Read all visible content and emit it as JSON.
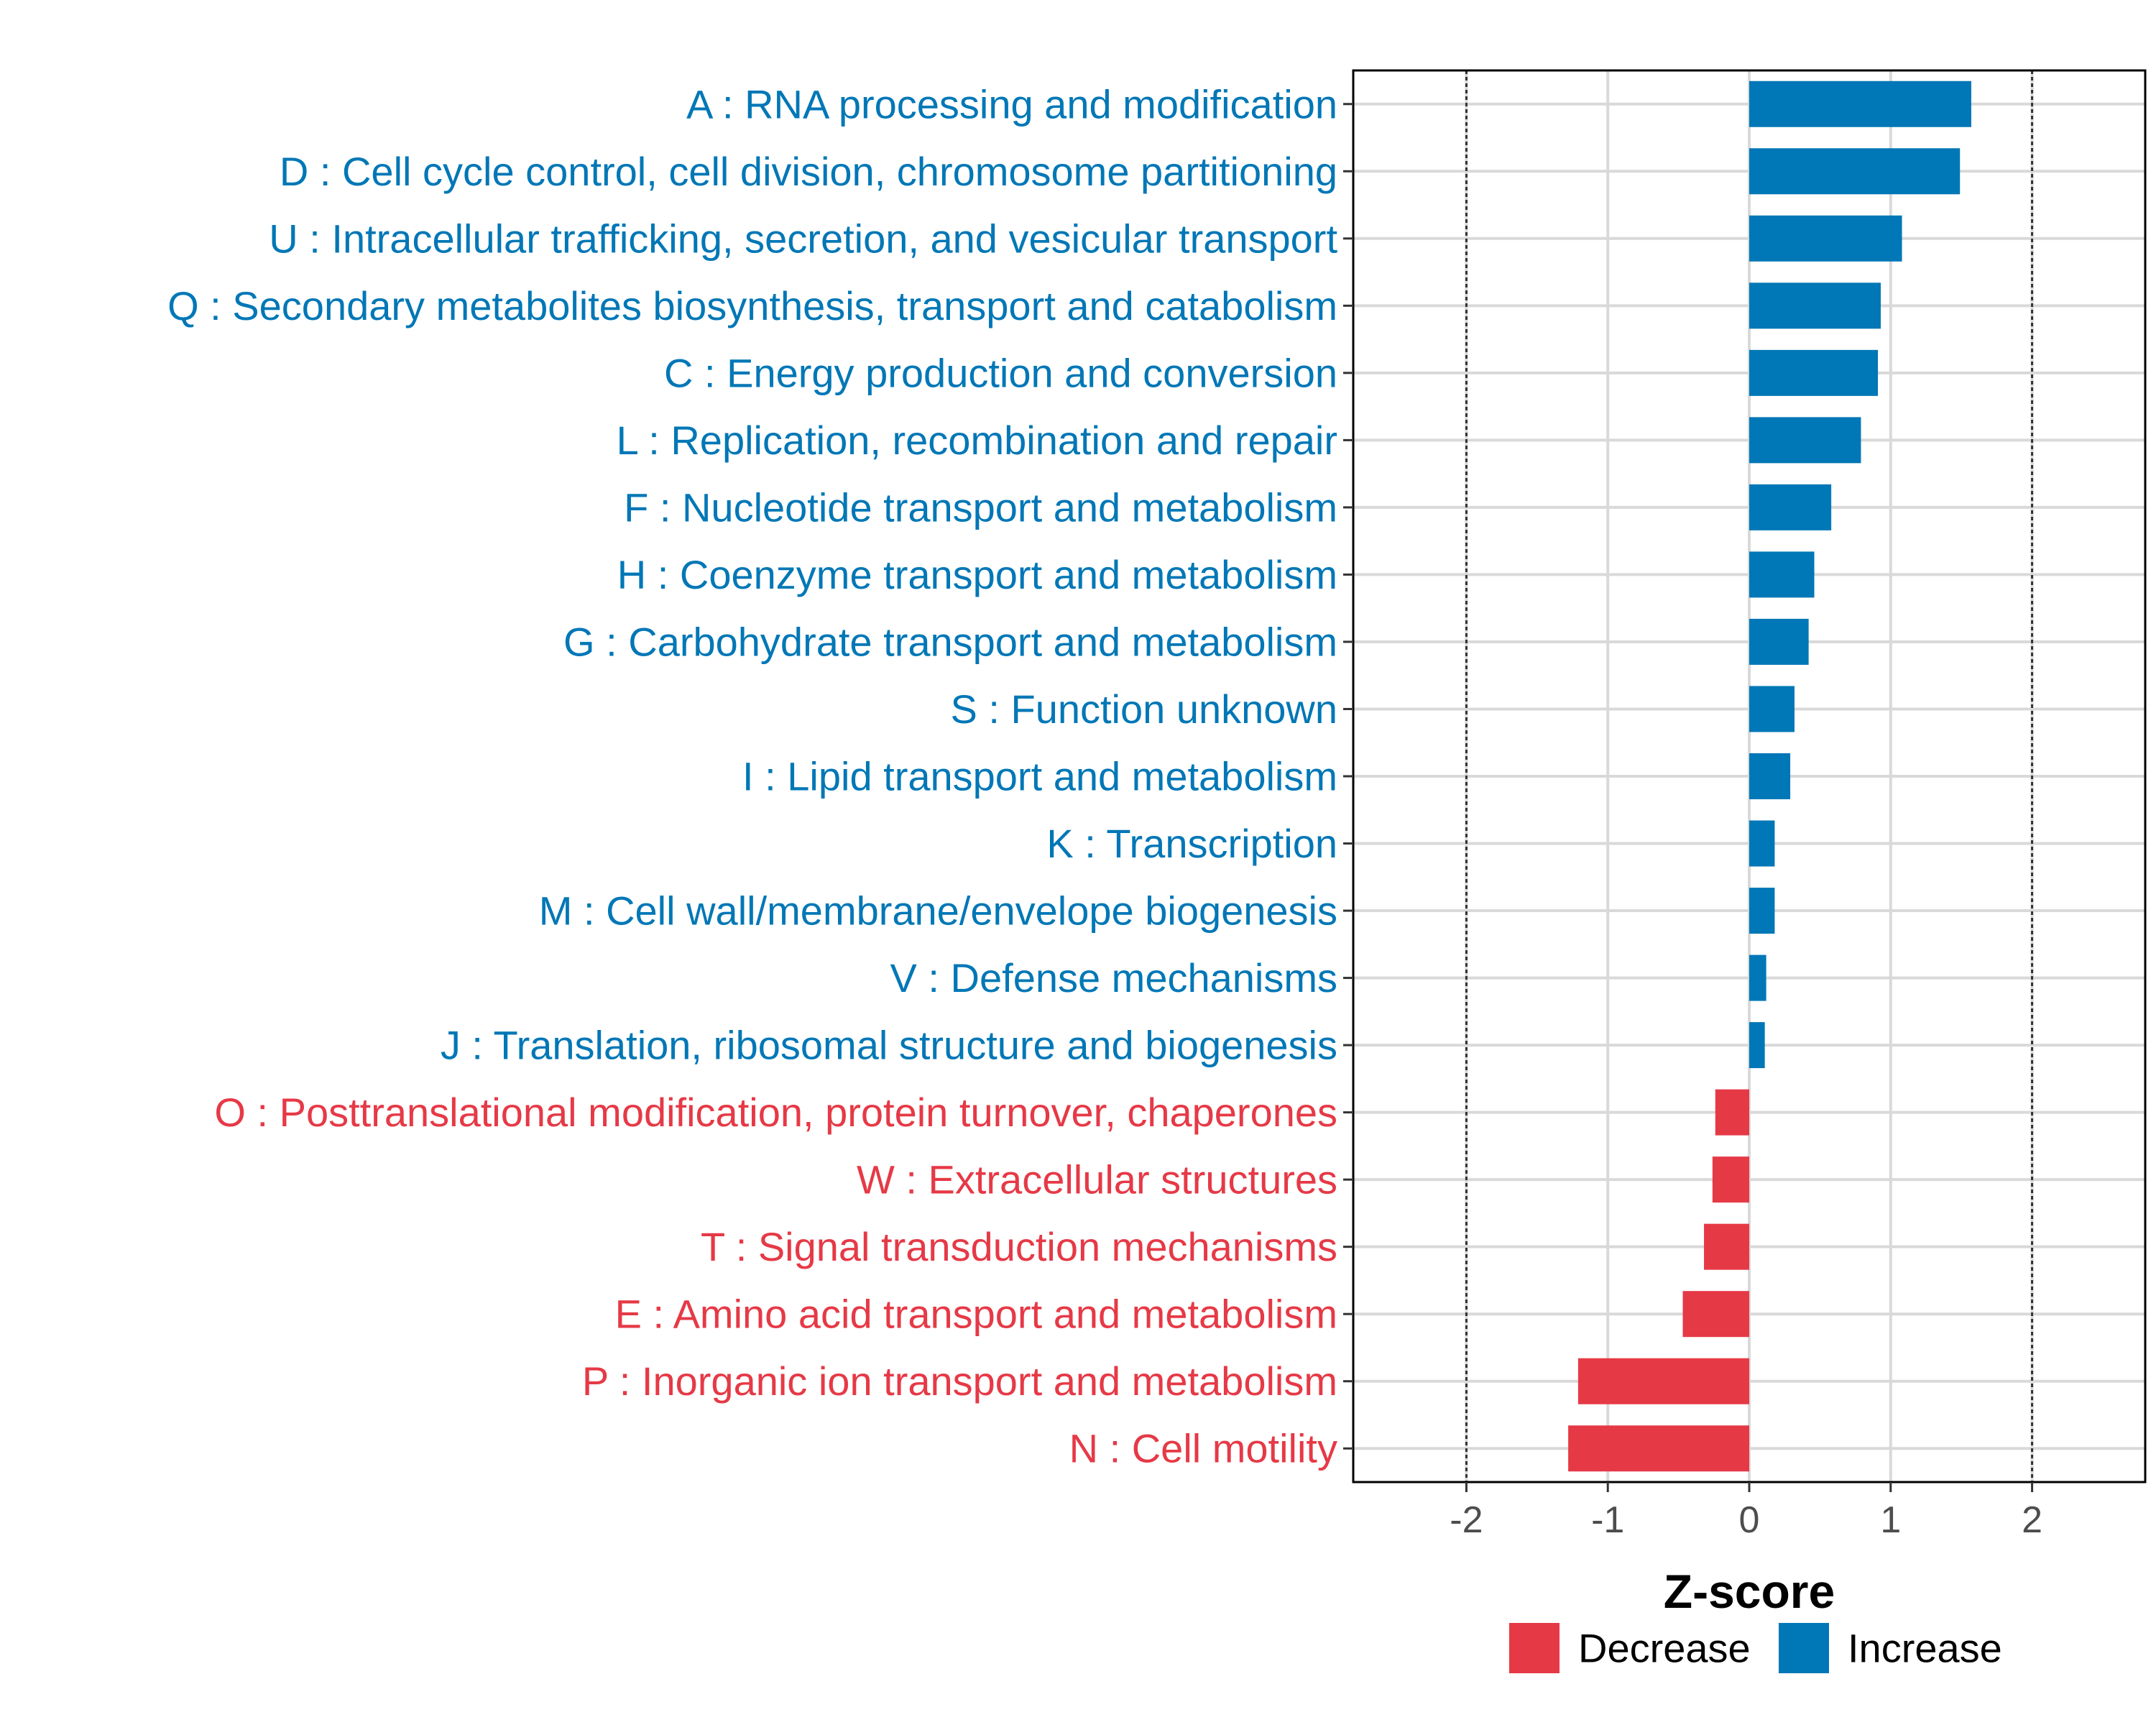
{
  "chart_data": {
    "type": "bar",
    "orientation": "horizontal",
    "xlabel": "Z-score",
    "ylabel": "",
    "xlim": [
      -2.8,
      2.8
    ],
    "xticks": [
      -2,
      -1,
      0,
      1,
      2
    ],
    "xtick_labels": [
      "-2",
      "-1",
      "0",
      "1",
      "2"
    ],
    "reference_lines": [
      -2,
      2
    ],
    "grid": true,
    "colors": {
      "Decrease": "#E63946",
      "Increase": "#0077B6"
    },
    "categories": [
      "A : RNA processing and modification",
      "D : Cell cycle control, cell division, chromosome partitioning",
      "U : Intracellular trafficking, secretion, and vesicular transport",
      "Q : Secondary metabolites biosynthesis, transport and catabolism",
      "C : Energy production and conversion",
      "L : Replication, recombination and repair",
      "F : Nucleotide transport and metabolism",
      "H : Coenzyme transport and metabolism",
      "G : Carbohydrate transport and metabolism",
      "S : Function unknown",
      "I : Lipid transport and metabolism",
      "K : Transcription",
      "M : Cell wall/membrane/envelope biogenesis",
      "V : Defense mechanisms",
      "J : Translation, ribosomal structure and biogenesis",
      "O : Posttranslational modification, protein turnover, chaperones",
      "W : Extracellular structures",
      "T : Signal transduction mechanisms",
      "E : Amino acid transport and metabolism",
      "P : Inorganic ion transport and metabolism",
      "N : Cell motility"
    ],
    "values": [
      1.57,
      1.49,
      1.08,
      0.93,
      0.91,
      0.79,
      0.58,
      0.46,
      0.42,
      0.32,
      0.29,
      0.18,
      0.18,
      0.12,
      0.11,
      -0.24,
      -0.26,
      -0.32,
      -0.47,
      -1.21,
      -1.28
    ],
    "groups": [
      "Increase",
      "Increase",
      "Increase",
      "Increase",
      "Increase",
      "Increase",
      "Increase",
      "Increase",
      "Increase",
      "Increase",
      "Increase",
      "Increase",
      "Increase",
      "Increase",
      "Increase",
      "Decrease",
      "Decrease",
      "Decrease",
      "Decrease",
      "Decrease",
      "Decrease"
    ],
    "legend": {
      "position": "bottom",
      "entries": [
        {
          "label": "Decrease",
          "color": "#E63946"
        },
        {
          "label": "Increase",
          "color": "#0077B6"
        }
      ]
    }
  }
}
